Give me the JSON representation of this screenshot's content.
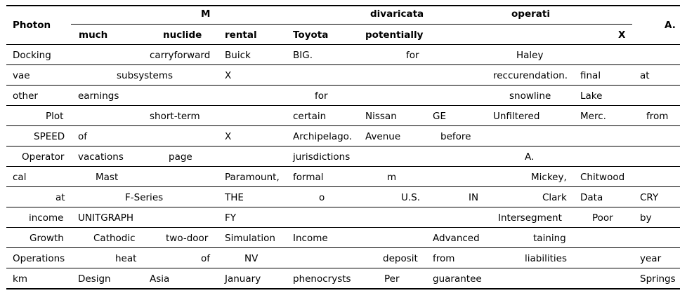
{
  "table": {
    "header": {
      "photon": "Photon",
      "m": "M",
      "divaricata": "divaricata",
      "operati": "operati",
      "a": "A.",
      "much": "much",
      "nuclide": "nuclide",
      "rental": "rental",
      "toyota": "Toyota",
      "potentially": "potentially",
      "x": "X"
    },
    "rows": [
      [
        "Docking",
        "carryforward",
        "Buick",
        "BIG.",
        "for",
        "Haley"
      ],
      [
        "vae",
        "subsystems",
        "X",
        "reccurendation.",
        "final",
        "at"
      ],
      [
        "other",
        "earnings",
        "for",
        "snowline",
        "Lake"
      ],
      [
        "Plot",
        "short-term",
        "certain",
        "Nissan",
        "GE",
        "Unfiltered",
        "Merc.",
        "from"
      ],
      [
        "SPEED",
        "of",
        "X",
        "Archipelago.",
        "Avenue",
        "before"
      ],
      [
        "Operator",
        "vacations",
        "page",
        "jurisdictions",
        "A."
      ],
      [
        "cal",
        "Mast",
        "Paramount,",
        "formal",
        "m",
        "Mickey,",
        "Chitwood"
      ],
      [
        "at",
        "F-Series",
        "THE",
        "o",
        "U.S.",
        "IN",
        "Clark",
        "Data",
        "CRY"
      ],
      [
        "income",
        "UNITGRAPH",
        "FY",
        "Intersegment",
        "Poor",
        "by"
      ],
      [
        "Growth",
        "Cathodic",
        "two-door",
        "Simulation",
        "Income",
        "Advanced",
        "taining"
      ],
      [
        "Operations",
        "heat",
        "of",
        "NV",
        "deposit",
        "from",
        "liabilities",
        "year"
      ],
      [
        "km",
        "Design",
        "Asia",
        "January",
        "phenocrysts",
        "Per",
        "guarantee",
        "Springs"
      ]
    ]
  }
}
